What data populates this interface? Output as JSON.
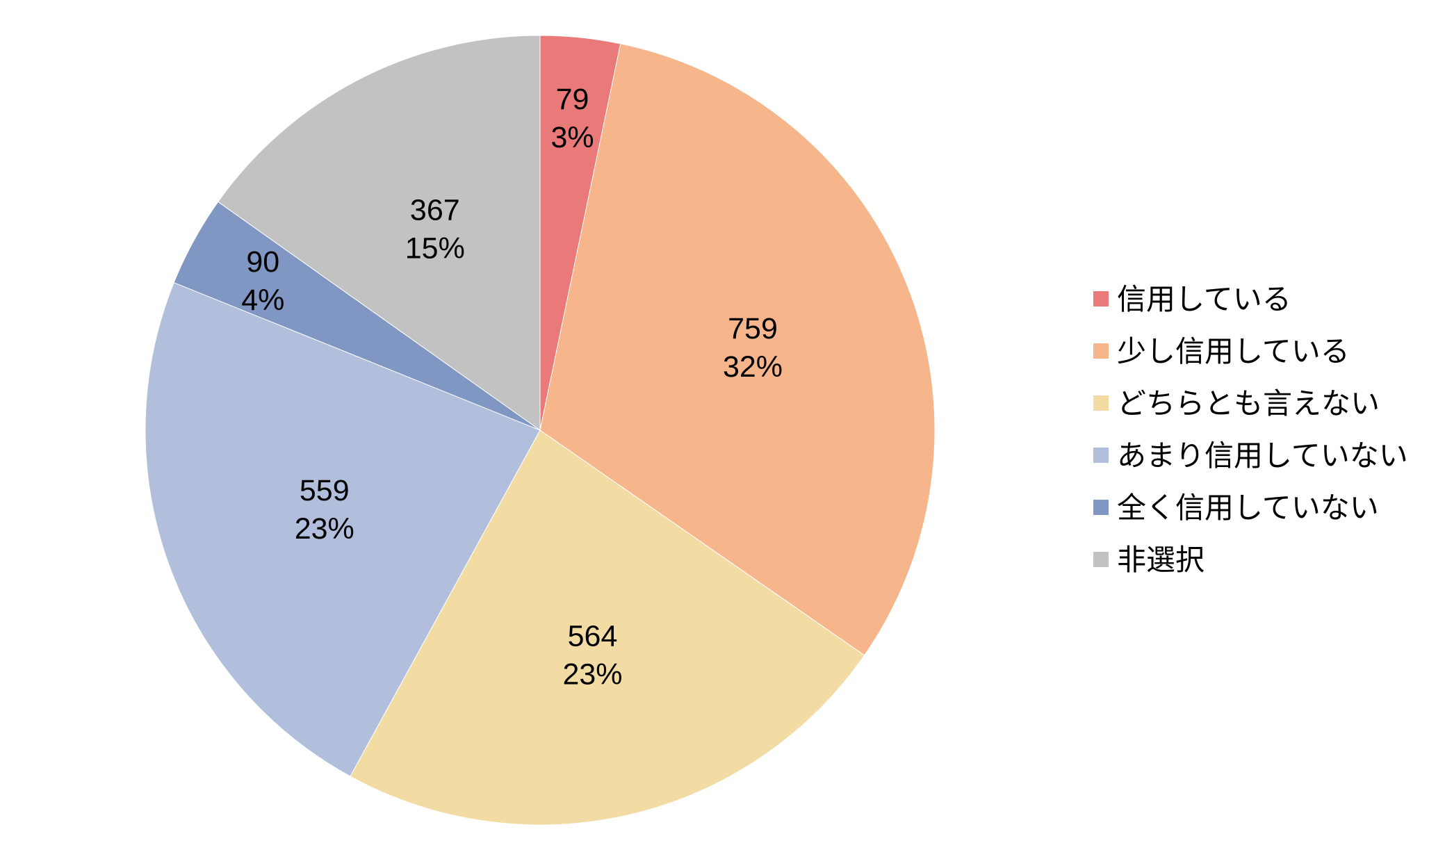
{
  "chart_data": {
    "type": "pie",
    "categories": [
      "信用している",
      "少し信用している",
      "どちらとも言えない",
      "あまり信用していない",
      "全く信用していない",
      "非選択"
    ],
    "values": [
      79,
      759,
      564,
      559,
      90,
      367
    ],
    "percent_labels": [
      "3%",
      "32%",
      "23%",
      "23%",
      "4%",
      "15%"
    ],
    "colors": [
      "#EA7A79",
      "#F6B58B",
      "#F3DBA4",
      "#B1BFDC",
      "#8096C3",
      "#C2C2C2"
    ],
    "start_angle_deg": 0,
    "direction": "clockwise",
    "legend": {
      "position": "right",
      "entries": [
        "信用している",
        "少し信用している",
        "どちらとも言えない",
        "あまり信用していない",
        "全く信用していない",
        "非選択"
      ]
    }
  }
}
